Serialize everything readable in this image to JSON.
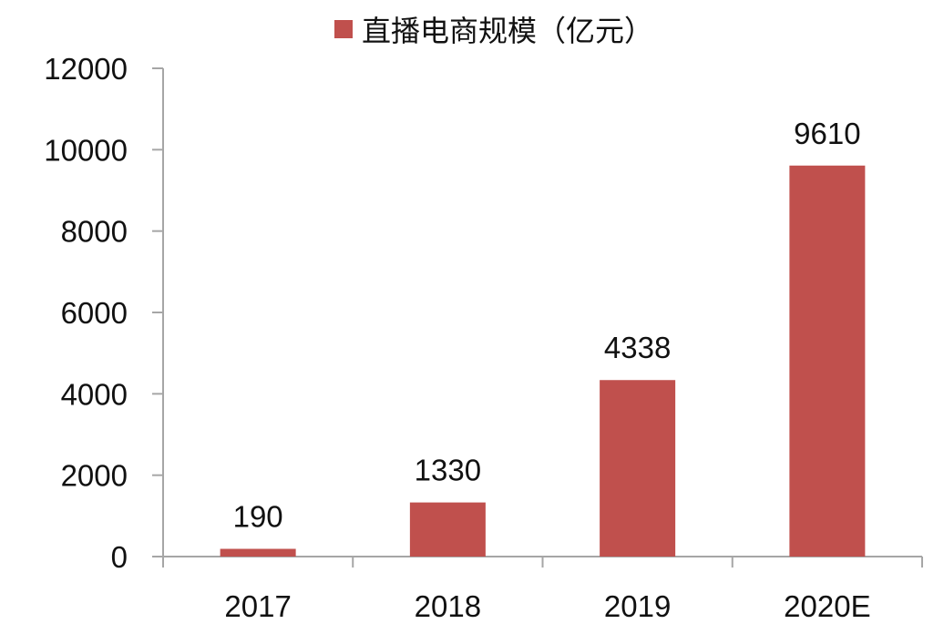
{
  "chart_data": {
    "type": "bar",
    "title": "",
    "xlabel": "",
    "ylabel": "",
    "categories": [
      "2017",
      "2018",
      "2019",
      "2020E"
    ],
    "series": [
      {
        "name": "直播电商规模（亿元）",
        "values": [
          190,
          1330,
          4338,
          9610
        ]
      }
    ],
    "ylim": [
      0,
      12000
    ],
    "yticks": [
      0,
      2000,
      4000,
      6000,
      8000,
      10000,
      12000
    ],
    "data_labels": [
      "190",
      "1330",
      "4338",
      "9610"
    ],
    "legend_position": "top-center",
    "grid": false,
    "bar_color": "#C0504D",
    "axis_color": "#A6A6A6"
  }
}
